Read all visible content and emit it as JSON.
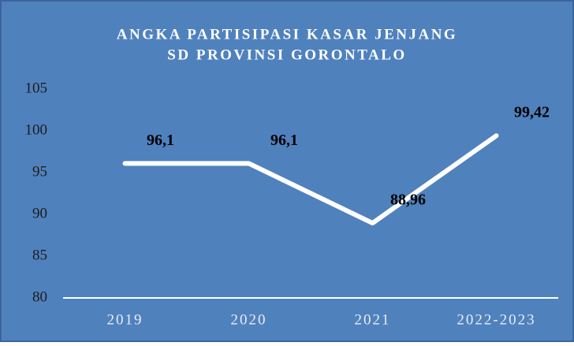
{
  "chart_data": {
    "type": "line",
    "title": [
      "ANGKA PARTISIPASI KASAR JENJANG",
      "SD PROVINSI GORONTALO"
    ],
    "categories": [
      "2019",
      "2020",
      "2021",
      "2022-2023"
    ],
    "values": [
      96.1,
      96.1,
      88.96,
      99.42
    ],
    "value_labels": [
      "96,1",
      "96,1",
      "88,96",
      "99,42"
    ],
    "color": "#ffffff",
    "ylim": [
      80,
      105
    ],
    "yticks": [
      80,
      85,
      90,
      95,
      100,
      105
    ],
    "grid": false
  }
}
